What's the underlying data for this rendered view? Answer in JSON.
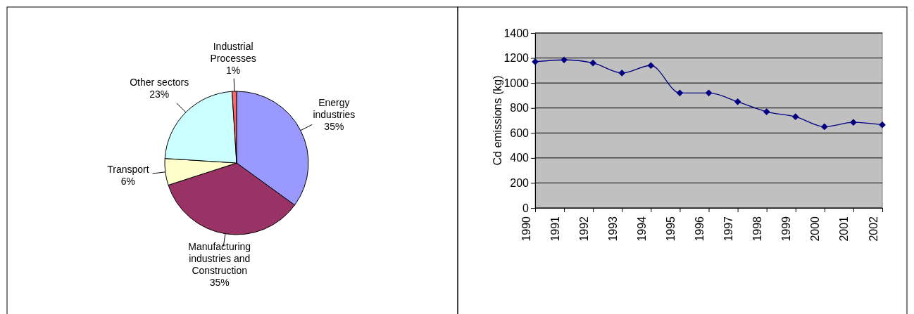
{
  "chart_data": [
    {
      "type": "pie",
      "categories": [
        "Energy industries",
        "Manufacturing industries and Construction",
        "Transport",
        "Other sectors",
        "Industrial Processes"
      ],
      "values": [
        35,
        35,
        6,
        23,
        1
      ],
      "value_labels": [
        "35%",
        "35%",
        "6%",
        "23%",
        "1%"
      ],
      "colors": [
        "#9999ff",
        "#993366",
        "#ffffcc",
        "#ccffff",
        "#ff6666"
      ]
    },
    {
      "type": "line",
      "ylabel": "Cd emissions (kg)",
      "categories": [
        "1990",
        "1991",
        "1992",
        "1993",
        "1994",
        "1995",
        "1996",
        "1997",
        "1998",
        "1999",
        "2000",
        "2001",
        "2002"
      ],
      "ylim": [
        0,
        1400
      ],
      "yticks": [
        0,
        200,
        400,
        600,
        800,
        1000,
        1200,
        1400
      ],
      "grid": "y",
      "marker": "diamond",
      "series": [
        {
          "color": "#000080",
          "values": [
            1170,
            1185,
            1160,
            1080,
            1140,
            920,
            920,
            850,
            770,
            730,
            650,
            685,
            665
          ]
        }
      ]
    }
  ]
}
